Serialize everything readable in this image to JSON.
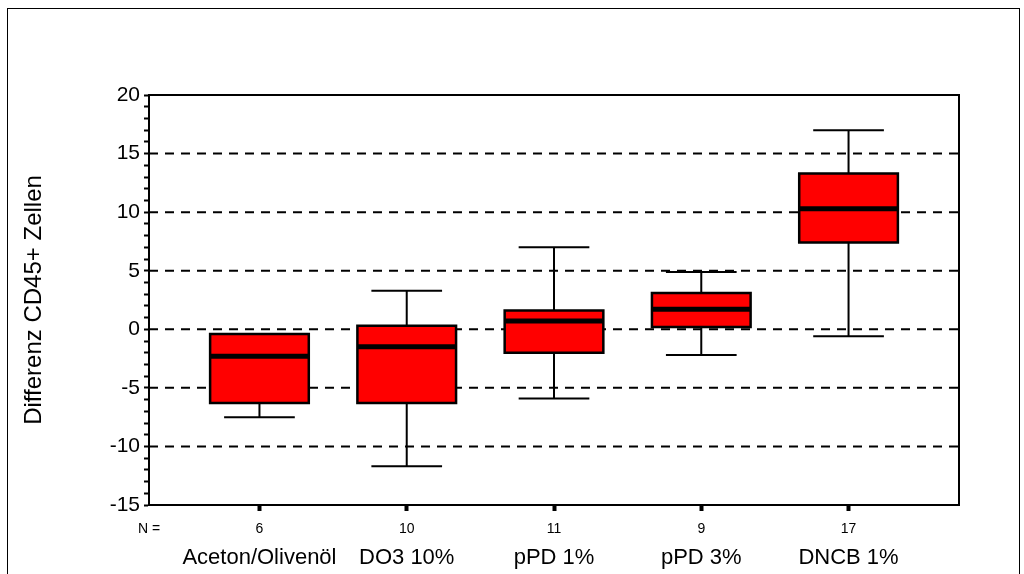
{
  "chart_data": {
    "type": "box",
    "ylabel": "Differenz CD45+ Zellen",
    "categories": [
      "Aceton/Olivenöl",
      "DO3 10%",
      "pPD 1%",
      "pPD 3%",
      "DNCB 1%"
    ],
    "color": "#ff0000",
    "boxes": [
      {
        "low": -7.5,
        "q1": -6.3,
        "median": -2.3,
        "q3": -0.4,
        "high": -0.4
      },
      {
        "low": -11.7,
        "q1": -6.3,
        "median": -1.5,
        "q3": 0.3,
        "high": 3.3
      },
      {
        "low": -5.9,
        "q1": -2.0,
        "median": 0.7,
        "q3": 1.6,
        "high": 7.0
      },
      {
        "low": -2.2,
        "q1": 0.2,
        "median": 1.7,
        "q3": 3.1,
        "high": 4.9
      },
      {
        "low": -0.6,
        "q1": 7.4,
        "median": 10.3,
        "q3": 13.3,
        "high": 17.0
      }
    ],
    "ylim": [
      -15,
      20
    ],
    "yticks": [
      -15,
      {
        "value": -14,
        "label": null
      },
      {
        "value": -13,
        "label": null
      },
      {
        "value": -12,
        "label": null
      },
      {
        "value": -11,
        "label": null
      },
      -10,
      {
        "value": -9,
        "label": null
      },
      {
        "value": -8,
        "label": null
      },
      {
        "value": -7,
        "label": null
      },
      {
        "value": -6,
        "label": null
      },
      -5,
      {
        "value": -4,
        "label": null
      },
      {
        "value": -3,
        "label": null
      },
      {
        "value": -2,
        "label": null
      },
      {
        "value": -1,
        "label": null
      },
      0,
      {
        "value": 1,
        "label": null
      },
      {
        "value": 2,
        "label": null
      },
      {
        "value": 3,
        "label": null
      },
      {
        "value": 4,
        "label": null
      },
      5,
      {
        "value": 6,
        "label": null
      },
      {
        "value": 7,
        "label": null
      },
      {
        "value": 8,
        "label": null
      },
      {
        "value": 9,
        "label": null
      },
      10,
      {
        "value": 11,
        "label": null
      },
      {
        "value": 12,
        "label": null
      },
      {
        "value": 13,
        "label": null
      },
      {
        "value": 14,
        "label": null
      },
      15,
      {
        "value": 16,
        "label": null
      },
      {
        "value": 17,
        "label": null
      },
      {
        "value": 18,
        "label": null
      },
      {
        "value": 19,
        "label": null
      },
      20
    ],
    "grid": "y",
    "annotations": [
      "N =",
      "6",
      "10",
      "11",
      "9",
      "17"
    ]
  }
}
